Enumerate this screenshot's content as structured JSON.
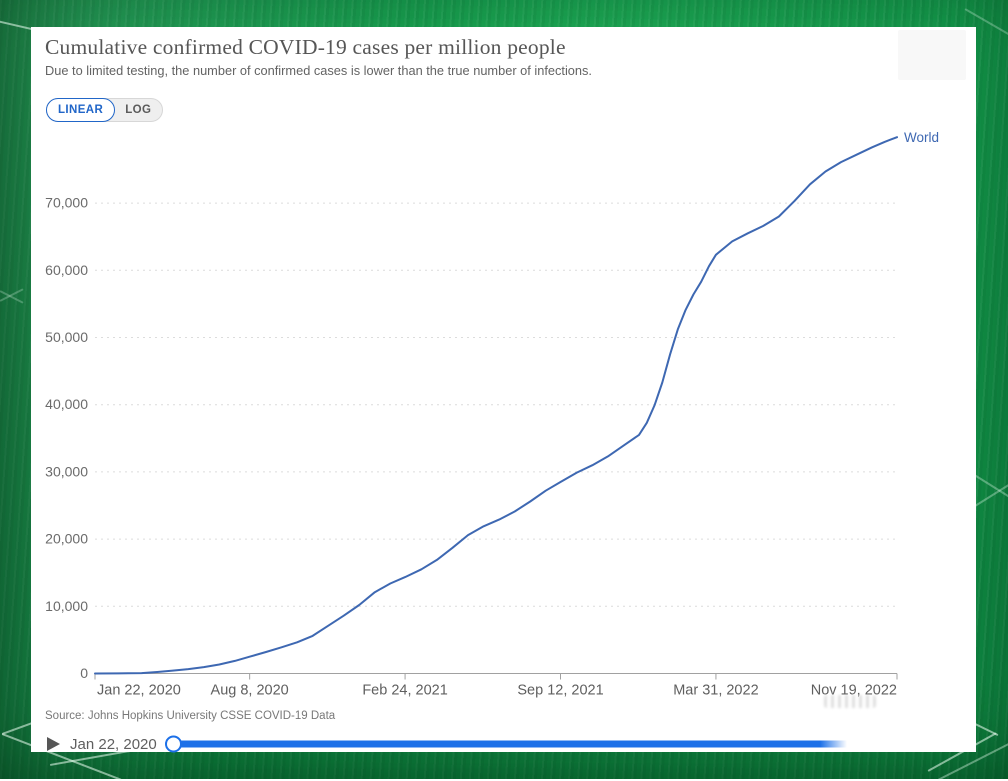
{
  "window": {
    "title": "Cumulative confirmed COVID-19 cases per million people",
    "subtitle": "Due to limited testing, the number of confirmed cases is lower than the true number of infections.",
    "scale_toggle": {
      "options": [
        "LINEAR",
        "LOG"
      ],
      "selected": "LINEAR"
    },
    "source": "Source: Johns Hopkins University CSSE COVID-19 Data",
    "timeline": {
      "current_date": "Jan 22, 2020"
    }
  },
  "colors": {
    "accent_blue": "#2166c8",
    "slider_blue": "#1c70e8",
    "line_blue": "#3e68b2"
  },
  "chart_data": {
    "type": "line",
    "title": "Cumulative confirmed COVID-19 cases per million people",
    "xlabel": "",
    "ylabel": "",
    "grid": "horizontal-dotted",
    "legend_position": "end-of-line",
    "x_axis": {
      "range_days": [
        0,
        1032
      ],
      "ticks": [
        {
          "label": "Jan 22, 2020",
          "day": 0
        },
        {
          "label": "Aug 8, 2020",
          "day": 199
        },
        {
          "label": "Feb 24, 2021",
          "day": 399
        },
        {
          "label": "Sep 12, 2021",
          "day": 599
        },
        {
          "label": "Mar 31, 2022",
          "day": 799
        },
        {
          "label": "Nov 19, 2022",
          "day": 1032
        }
      ]
    },
    "y_axis": {
      "range": [
        0,
        80000
      ],
      "ticks": [
        {
          "value": 0,
          "label": "0"
        },
        {
          "value": 10000,
          "label": "10,000"
        },
        {
          "value": 20000,
          "label": "20,000"
        },
        {
          "value": 30000,
          "label": "30,000"
        },
        {
          "value": 40000,
          "label": "40,000"
        },
        {
          "value": 50000,
          "label": "50,000"
        },
        {
          "value": 60000,
          "label": "60,000"
        },
        {
          "value": 70000,
          "label": "70,000"
        }
      ]
    },
    "series": [
      {
        "name": "World",
        "color": "#3e68b2",
        "points": [
          [
            0,
            0
          ],
          [
            30,
            10
          ],
          [
            60,
            60
          ],
          [
            80,
            230
          ],
          [
            100,
            430
          ],
          [
            120,
            660
          ],
          [
            140,
            950
          ],
          [
            160,
            1340
          ],
          [
            180,
            1880
          ],
          [
            199,
            2500
          ],
          [
            220,
            3200
          ],
          [
            240,
            3900
          ],
          [
            260,
            4650
          ],
          [
            280,
            5600
          ],
          [
            300,
            7100
          ],
          [
            320,
            8600
          ],
          [
            340,
            10200
          ],
          [
            360,
            12100
          ],
          [
            380,
            13400
          ],
          [
            399,
            14350
          ],
          [
            420,
            15500
          ],
          [
            440,
            16900
          ],
          [
            460,
            18700
          ],
          [
            480,
            20600
          ],
          [
            500,
            21900
          ],
          [
            520,
            22900
          ],
          [
            540,
            24100
          ],
          [
            560,
            25600
          ],
          [
            580,
            27200
          ],
          [
            599,
            28500
          ],
          [
            620,
            29900
          ],
          [
            640,
            31000
          ],
          [
            660,
            32300
          ],
          [
            680,
            33900
          ],
          [
            700,
            35500
          ],
          [
            710,
            37300
          ],
          [
            720,
            39900
          ],
          [
            730,
            43300
          ],
          [
            740,
            47500
          ],
          [
            750,
            51200
          ],
          [
            760,
            54100
          ],
          [
            770,
            56400
          ],
          [
            780,
            58300
          ],
          [
            790,
            60600
          ],
          [
            799,
            62300
          ],
          [
            820,
            64300
          ],
          [
            840,
            65500
          ],
          [
            860,
            66600
          ],
          [
            880,
            68000
          ],
          [
            900,
            70300
          ],
          [
            920,
            72800
          ],
          [
            940,
            74700
          ],
          [
            960,
            76100
          ],
          [
            980,
            77200
          ],
          [
            1000,
            78300
          ],
          [
            1016,
            79100
          ],
          [
            1032,
            79800
          ]
        ]
      }
    ]
  }
}
